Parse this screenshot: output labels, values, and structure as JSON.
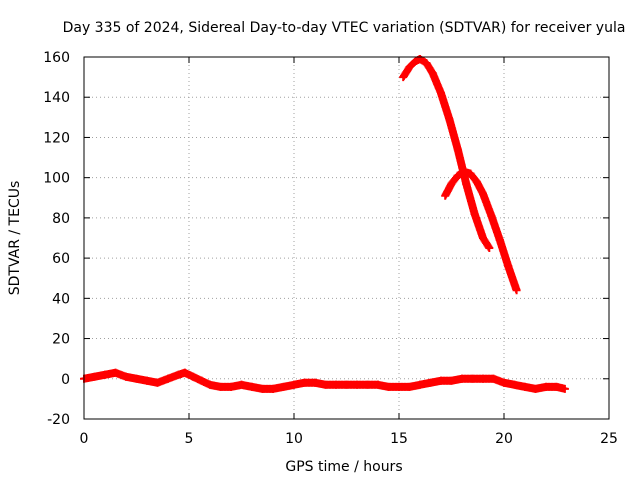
{
  "chart_data": {
    "type": "scatter",
    "title": "Day 335 of 2024, Sidereal Day-to-day VTEC variation (SDTVAR) for receiver yula",
    "xlabel": "GPS time / hours",
    "ylabel": "SDTVAR / TECUs",
    "xlim": [
      0,
      25
    ],
    "ylim": [
      -20,
      160
    ],
    "xticks": [
      "0",
      "5",
      "10",
      "15",
      "20",
      "25"
    ],
    "yticks": [
      "-20",
      "0",
      "20",
      "40",
      "60",
      "80",
      "100",
      "120",
      "140",
      "160"
    ],
    "grid": true,
    "legend": "none",
    "marker": "plus",
    "color": "#ff0000",
    "series": [
      {
        "x": [
          0.0,
          0.5,
          1.0,
          1.5,
          2.0,
          2.5,
          3.0,
          3.5,
          4.0,
          4.5,
          4.8,
          5.2,
          5.6,
          6.0,
          6.5,
          7.0,
          7.5,
          8.0,
          8.5,
          9.0,
          9.5,
          10.0,
          10.5,
          11.0,
          11.5,
          12.0,
          12.5,
          13.0,
          13.5,
          14.0,
          14.5,
          15.0,
          15.5,
          16.0,
          16.5,
          17.0,
          17.5,
          18.0,
          18.5,
          19.0,
          19.5,
          20.0,
          20.5,
          21.0,
          21.5,
          22.0,
          22.5,
          22.9
        ],
        "y": [
          0,
          1,
          2,
          3,
          1,
          0,
          -1,
          -2,
          0,
          2,
          3,
          1,
          -1,
          -3,
          -4,
          -4,
          -3,
          -4,
          -5,
          -5,
          -4,
          -3,
          -2,
          -2,
          -3,
          -3,
          -3,
          -3,
          -3,
          -3,
          -4,
          -4,
          -4,
          -3,
          -2,
          -1,
          -1,
          0,
          0,
          0,
          0,
          -2,
          -3,
          -4,
          -5,
          -4,
          -4,
          -5
        ]
      },
      {
        "x": [
          15.2,
          15.5,
          15.8,
          16.0,
          16.3,
          16.6,
          17.0,
          17.4,
          17.8,
          18.2,
          18.6,
          19.0,
          19.3
        ],
        "y": [
          150,
          155,
          158,
          159,
          157,
          152,
          142,
          129,
          114,
          97,
          82,
          70,
          65
        ]
      },
      {
        "x": [
          17.2,
          17.5,
          17.8,
          18.1,
          18.4,
          18.7,
          19.0,
          19.4,
          19.8,
          20.2,
          20.6
        ],
        "y": [
          91,
          97,
          101,
          103,
          102,
          98,
          92,
          81,
          69,
          56,
          44
        ]
      }
    ]
  }
}
